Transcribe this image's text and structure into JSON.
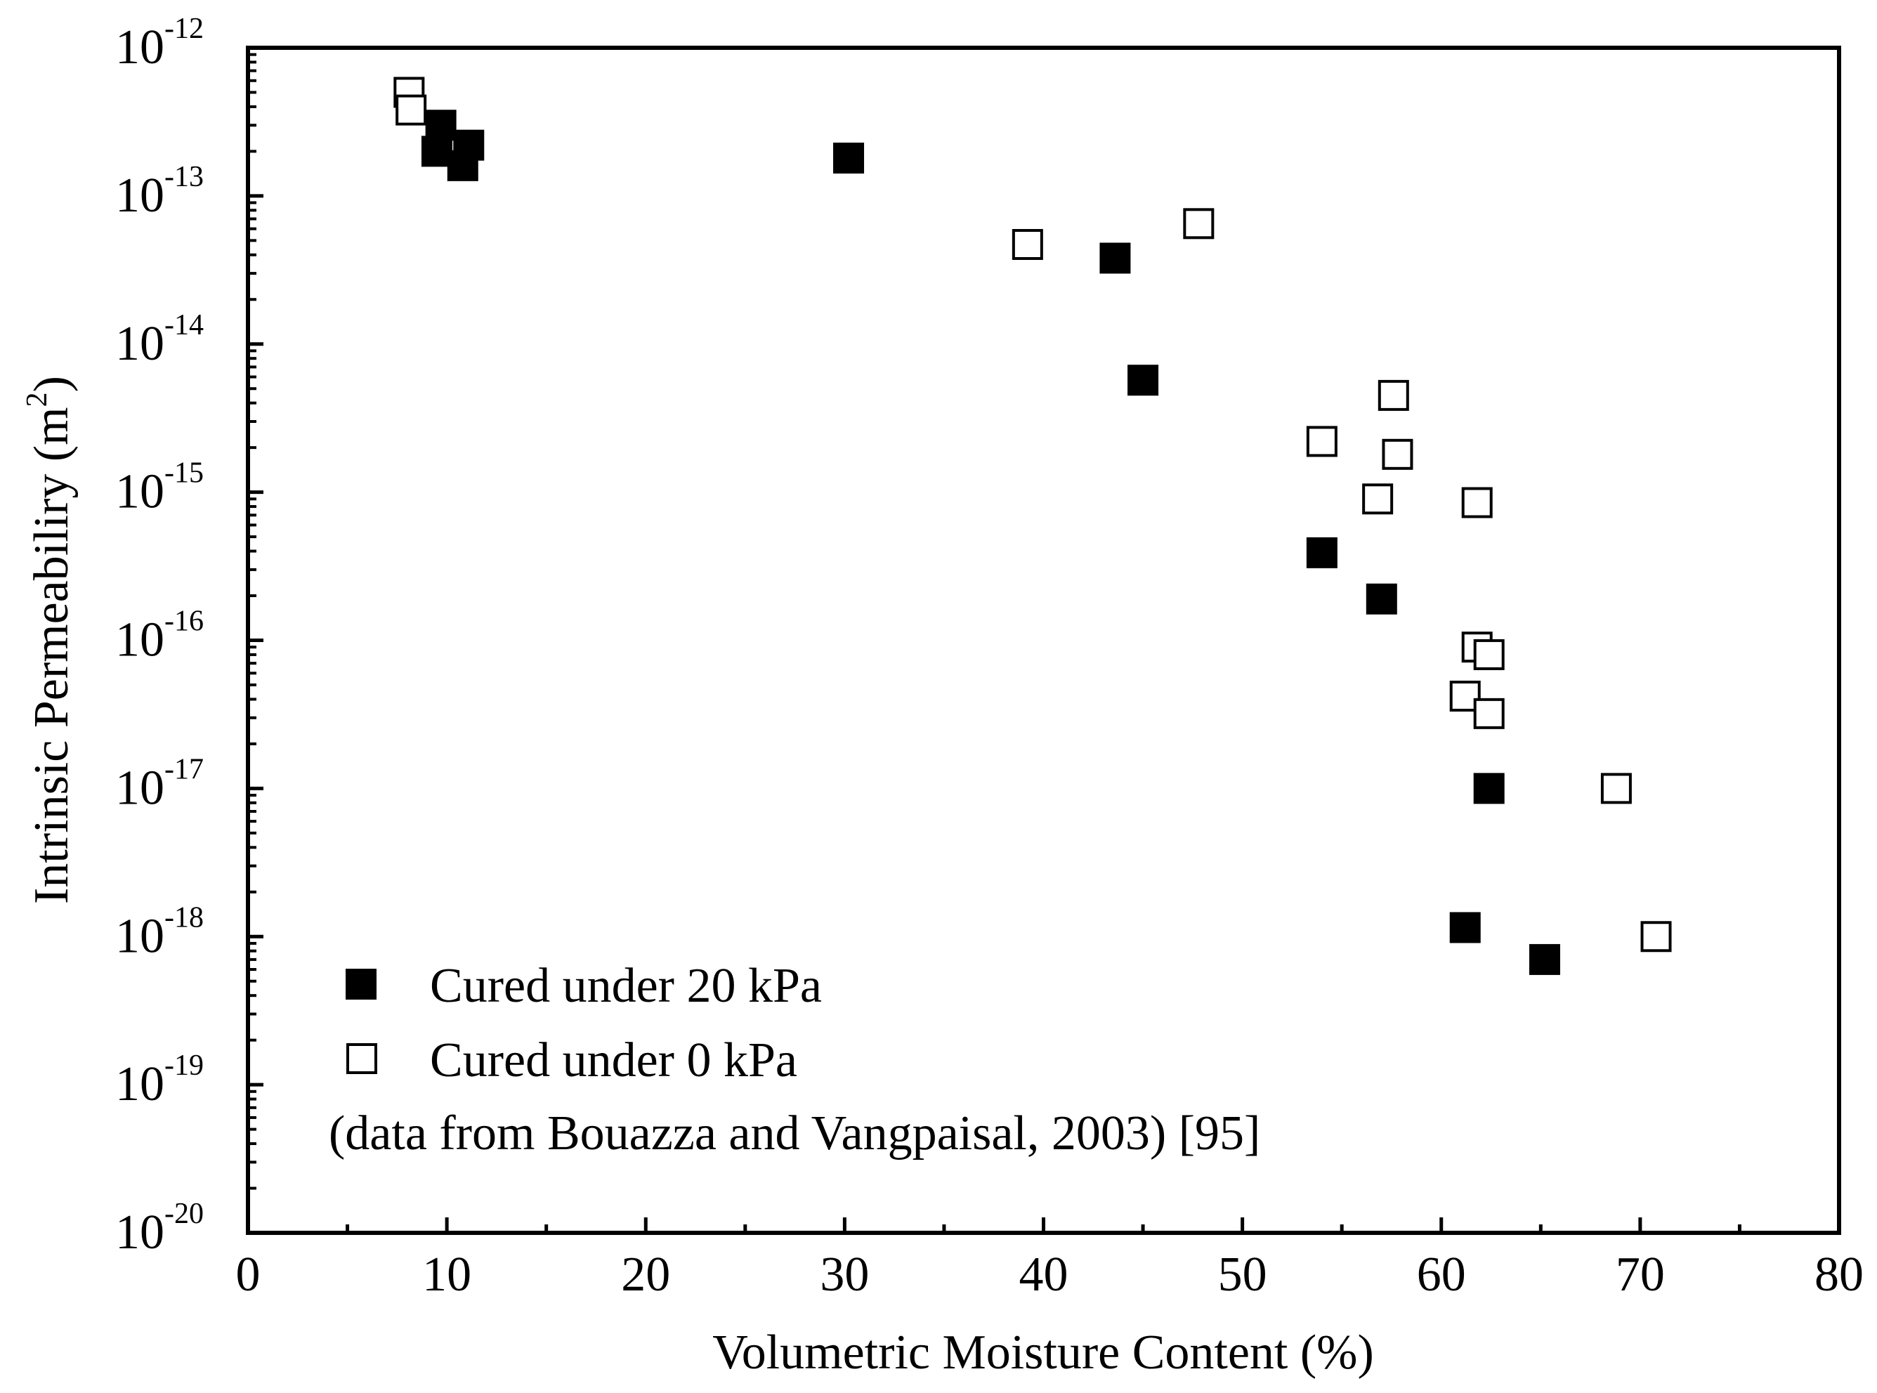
{
  "chart_data": {
    "type": "scatter",
    "xlabel": "Volumetric Moisture Content (%)",
    "ylabel": "Intrinsic Permeabiliry (m",
    "ylabel_sup": "2",
    "ylabel_end": ")",
    "xlim": [
      0,
      80
    ],
    "ylim_log10": [
      -20,
      -12
    ],
    "y_scale": "log",
    "x_ticks": [
      0,
      10,
      20,
      30,
      40,
      50,
      60,
      70,
      80
    ],
    "x_tick_labels": [
      "0",
      "10",
      "20",
      "30",
      "40",
      "50",
      "60",
      "70",
      "80"
    ],
    "y_tick_base": "10",
    "y_tick_exponents": [
      "-12",
      "-13",
      "-14",
      "-15",
      "-16",
      "-17",
      "-18",
      "-19",
      "-20"
    ],
    "legend_position": "bottom-left",
    "note": "(data from Bouazza and Vangpaisal, 2003) [95]",
    "series": [
      {
        "name": "Cured under 20 kPa",
        "marker": "filled-square",
        "color": "#000000",
        "points": [
          {
            "x": 9.7,
            "y": 3e-13
          },
          {
            "x": 9.5,
            "y": 2e-13
          },
          {
            "x": 11.1,
            "y": 2.2e-13
          },
          {
            "x": 10.8,
            "y": 1.6e-13
          },
          {
            "x": 30.2,
            "y": 1.8e-13
          },
          {
            "x": 43.6,
            "y": 3.8e-14
          },
          {
            "x": 45.0,
            "y": 5.7e-15
          },
          {
            "x": 54.0,
            "y": 3.9e-16
          },
          {
            "x": 57.0,
            "y": 1.9e-16
          },
          {
            "x": 62.4,
            "y": 1e-17
          },
          {
            "x": 61.2,
            "y": 1.15e-18
          },
          {
            "x": 65.2,
            "y": 7e-19
          }
        ]
      },
      {
        "name": "Cured under 0 kPa",
        "marker": "open-square",
        "color": "#000000",
        "points": [
          {
            "x": 8.1,
            "y": 5e-13
          },
          {
            "x": 8.2,
            "y": 3.8e-13
          },
          {
            "x": 39.2,
            "y": 4.7e-14
          },
          {
            "x": 47.8,
            "y": 6.5e-14
          },
          {
            "x": 57.6,
            "y": 4.5e-15
          },
          {
            "x": 54.0,
            "y": 2.2e-15
          },
          {
            "x": 57.8,
            "y": 1.8e-15
          },
          {
            "x": 56.8,
            "y": 9e-16
          },
          {
            "x": 61.8,
            "y": 8.5e-16
          },
          {
            "x": 61.8,
            "y": 9e-17
          },
          {
            "x": 62.4,
            "y": 8e-17
          },
          {
            "x": 61.2,
            "y": 4.2e-17
          },
          {
            "x": 62.4,
            "y": 3.2e-17
          },
          {
            "x": 68.8,
            "y": 1e-17
          },
          {
            "x": 70.8,
            "y": 1e-18
          }
        ]
      }
    ]
  }
}
